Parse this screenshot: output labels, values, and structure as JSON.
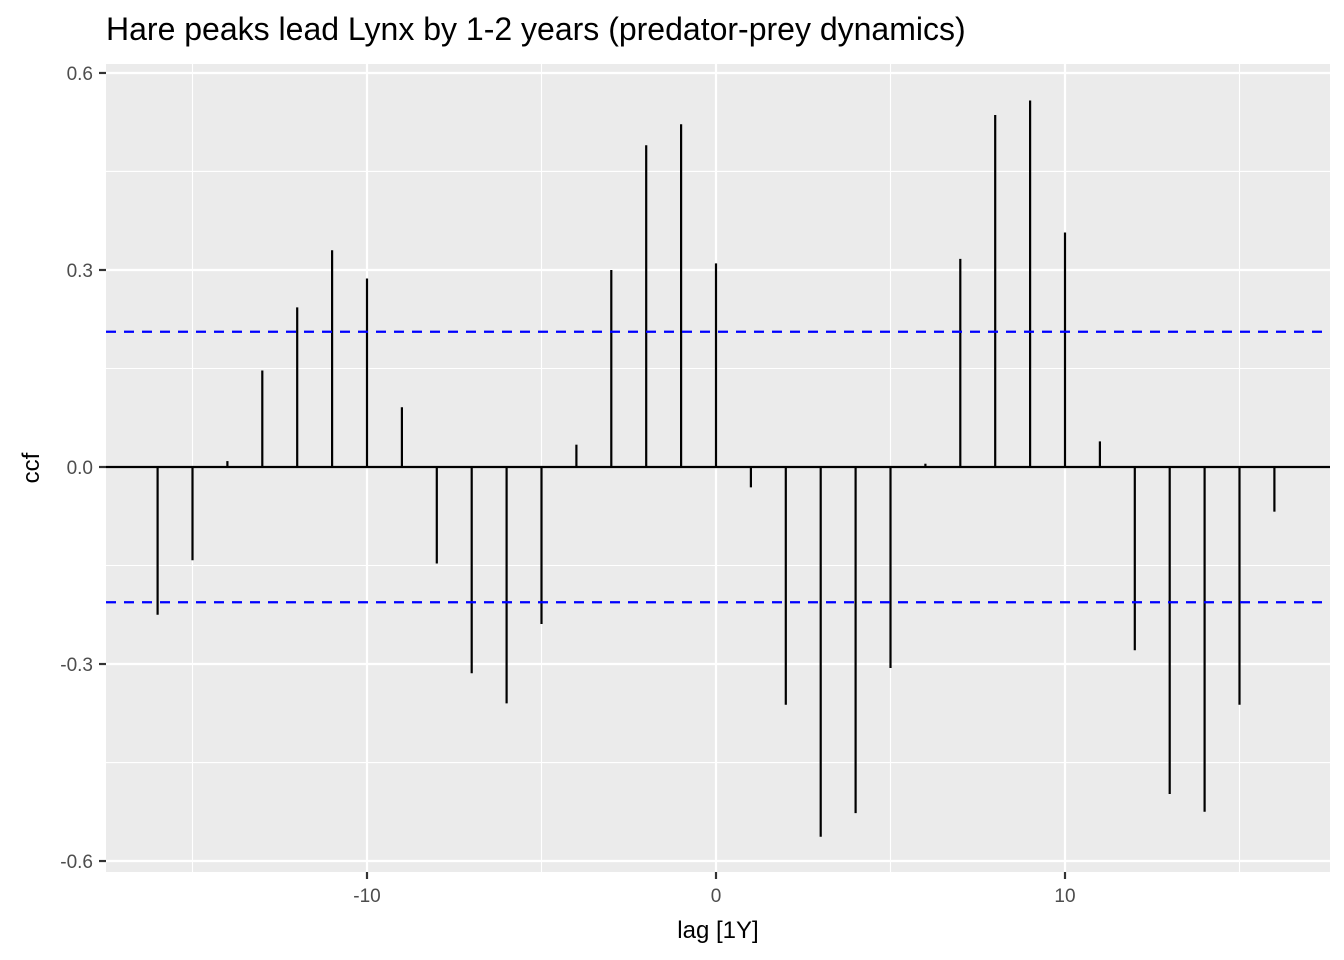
{
  "chart_data": {
    "type": "ccf",
    "title": "Hare peaks lead Lynx by 1-2 years (predator-prey dynamics)",
    "xlabel": "lag [1Y]",
    "ylabel": "ccf",
    "xlim": [
      -17.6,
      17.6
    ],
    "ylim": [
      -0.62,
      0.6
    ],
    "x_ticks": [
      -10,
      0,
      10
    ],
    "x_tick_labels": [
      "-10",
      "0",
      "10"
    ],
    "y_ticks": [
      0.6,
      0.3,
      0.0,
      -0.3,
      -0.6
    ],
    "y_tick_labels": [
      "0.6",
      "0.3",
      "0.0",
      "-0.3",
      "-0.6"
    ],
    "confidence_bound": 0.206,
    "grid": true,
    "lags": [
      -16,
      -15,
      -14,
      -13,
      -12,
      -11,
      -10,
      -9,
      -8,
      -7,
      -6,
      -5,
      -4,
      -3,
      -2,
      -1,
      0,
      1,
      2,
      3,
      4,
      5,
      6,
      7,
      8,
      9,
      10,
      11,
      12,
      13,
      14,
      15,
      16
    ],
    "values": [
      -0.225,
      -0.142,
      0.009,
      0.147,
      0.243,
      0.33,
      0.287,
      0.091,
      -0.147,
      -0.314,
      -0.36,
      -0.239,
      0.034,
      0.3,
      0.49,
      0.522,
      0.31,
      -0.031,
      -0.362,
      -0.563,
      -0.527,
      -0.306,
      0.005,
      0.317,
      0.536,
      0.558,
      0.357,
      0.039,
      -0.279,
      -0.498,
      -0.525,
      -0.362,
      -0.068
    ],
    "colors": {
      "panel": "#ebebeb",
      "grid": "#ffffff",
      "bars": "#000000",
      "bounds": "#0000ff"
    }
  }
}
